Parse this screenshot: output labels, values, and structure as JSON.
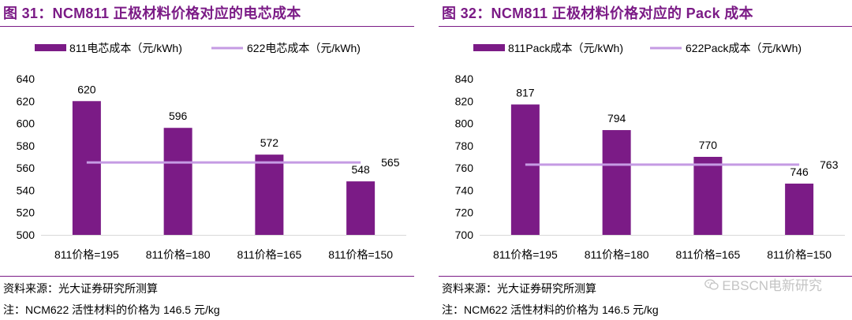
{
  "colors": {
    "bar": "#7b1b86",
    "line": "#c59be3",
    "title": "#7b1b86"
  },
  "figures": [
    {
      "title": "图 31：NCM811 正极材料价格对应的电芯成本",
      "source": "资料来源：光大证券研究所测算",
      "note": "注：NCM622 活性材料的价格为 146.5 元/kg"
    },
    {
      "title": "图 32：NCM811 正极材料价格对应的 Pack 成本",
      "source": "资料来源：光大证券研究所测算",
      "note": "注：NCM622 活性材料的价格为 146.5 元/kg",
      "watermark": "EBSCN电新研究",
      "watermark_icon": "wechat-icon"
    }
  ],
  "chart_data": [
    {
      "type": "bar",
      "categories": [
        "811价格=195",
        "811价格=180",
        "811价格=165",
        "811价格=150"
      ],
      "series": [
        {
          "name": "811电芯成本（元/kWh)",
          "kind": "bar",
          "values": [
            620,
            596,
            572,
            548
          ]
        },
        {
          "name": "622电芯成本（元/kWh)",
          "kind": "line",
          "values": [
            565,
            565,
            565,
            565
          ]
        }
      ],
      "line_label": "565",
      "yticks": [
        500,
        520,
        540,
        560,
        580,
        600,
        620,
        640
      ],
      "ylim": [
        500,
        640
      ],
      "grid": false,
      "legend": "top"
    },
    {
      "type": "bar",
      "categories": [
        "811价格=195",
        "811价格=180",
        "811价格=165",
        "811价格=150"
      ],
      "series": [
        {
          "name": "811Pack成本（元/kWh)",
          "kind": "bar",
          "values": [
            817,
            794,
            770,
            746
          ]
        },
        {
          "name": "622Pack成本（元/kWh)",
          "kind": "line",
          "values": [
            763,
            763,
            763,
            763
          ]
        }
      ],
      "line_label": "763",
      "yticks": [
        700,
        720,
        740,
        760,
        780,
        800,
        820,
        840
      ],
      "ylim": [
        700,
        840
      ],
      "grid": false,
      "legend": "top"
    }
  ]
}
